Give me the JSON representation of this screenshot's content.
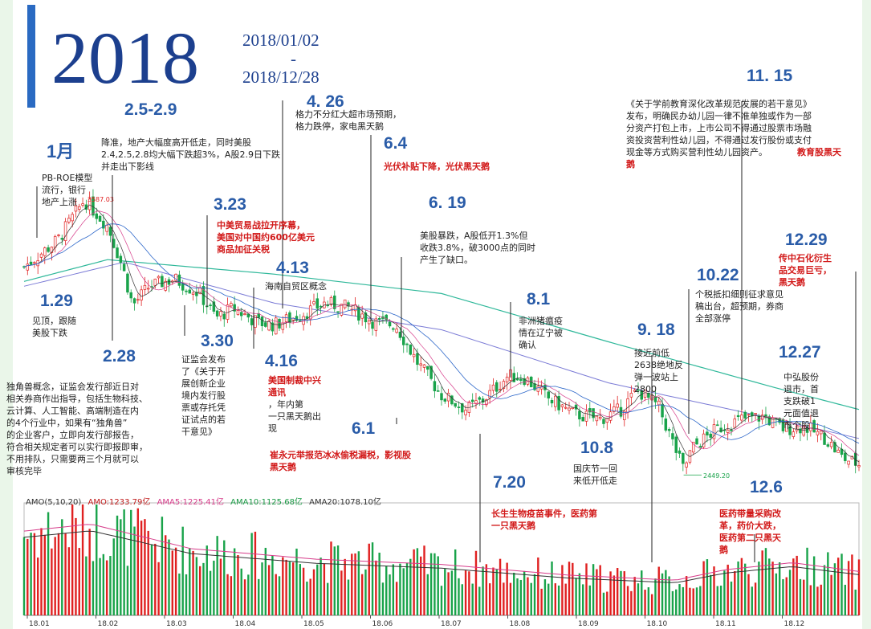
{
  "header": {
    "year": "2018",
    "date_start": "2018/01/02",
    "date_sep": "-",
    "date_end": "2018/12/28"
  },
  "colors": {
    "up": "#e02020",
    "down": "#19a34a",
    "label": "#2a5ca8",
    "annotation_red": "#d21a1a"
  },
  "annotations": [
    {
      "id": "jan",
      "label": "1月",
      "lines": [
        "PB-ROE模型",
        "流行，银行",
        "地产上涨"
      ]
    },
    {
      "id": "d129",
      "label": "1.29",
      "lines": [
        "见顶，跟随",
        "美股下跌"
      ]
    },
    {
      "id": "d25",
      "label": "2.5-2.9",
      "lines": [
        "降准，地产大幅度高开低走，同时美股",
        "2.4,2.5,2.8均大幅下跌超3%，A股2.9日下跌",
        "并走出下影线"
      ]
    },
    {
      "id": "d228",
      "label": "2.28",
      "lines": [
        "独角兽概念，证监会发行部近日对",
        "相关券商作出指导，包括生物科技、",
        "云计算、人工智能、高端制造在内",
        "的4个行业中，如果有“独角兽”",
        "的企业客户，立即向发行部报告，",
        "符合相关规定者可以实行即报即审，",
        "不用排队，只需要两三个月就可以",
        "审核完毕"
      ]
    },
    {
      "id": "d323",
      "label": "3.23",
      "red": [
        "中美贸易战拉开序幕，",
        "美国对中国约600亿美元",
        "商品加征关税"
      ]
    },
    {
      "id": "d330",
      "label": "3.30",
      "lines": [
        "证监会发布",
        "了《关于开",
        "展创新企业",
        "境内发行股",
        "票或存托凭",
        "证试点的若",
        "干意见》"
      ]
    },
    {
      "id": "d413",
      "label": "4.13",
      "lines": [
        "海南自贸区概念"
      ]
    },
    {
      "id": "d416",
      "label": "4.16",
      "red": [
        "美国制裁中兴",
        "通讯"
      ],
      "lines": [
        "，年内第",
        "一只黑天鹅出",
        "现"
      ]
    },
    {
      "id": "d426",
      "label": "4. 26",
      "lines": [
        "格力不分红大超市场预期，",
        "格力跌停，家电黑天鹅"
      ]
    },
    {
      "id": "d64",
      "label": "6.4",
      "red": [
        "光伏补贴下降，光伏黑天鹅"
      ]
    },
    {
      "id": "d61",
      "label": "6.1",
      "red": [
        "崔永元举报范冰冰偷税漏税，影视股",
        "黑天鹅"
      ]
    },
    {
      "id": "d619",
      "label": "6. 19",
      "lines": [
        "美股暴跌，A股低开1.3%但",
        "收跌3.8%，破3000点的同时",
        "产生了缺口。"
      ]
    },
    {
      "id": "d720",
      "label": "7.20",
      "red": [
        "长生生物疫苗事件，医药第",
        "一只黑天鹅"
      ]
    },
    {
      "id": "d81",
      "label": "8.1",
      "lines": [
        "非洲猪瘟疫",
        "情在辽宁被",
        "确认"
      ]
    },
    {
      "id": "d918",
      "label": "9. 18",
      "lines": [
        "接近前低",
        "2638绝地反",
        "弹一波站上",
        "2800"
      ]
    },
    {
      "id": "d108",
      "label": "10.8",
      "lines": [
        "国庆节一回",
        "来低开低走"
      ]
    },
    {
      "id": "d1022",
      "label": "10.22",
      "lines": [
        "个税抵扣细则征求意见",
        "稿出台，超预期，券商",
        "全部涨停"
      ]
    },
    {
      "id": "d1115",
      "label": "11. 15",
      "lines": [
        "《关于学前教育深化改革规范发展的若干意见》",
        "发布，明确民办幼儿园一律不准单独或作为一部",
        "分资产打包上市，上市公司不得通过股票市场融",
        "资投资营利性幼儿园，不得通过发行股份或支付",
        "现金等方式购买营利性幼儿园资产。"
      ],
      "red_tail": "教育股黑天",
      "red_tail2": "鹅"
    },
    {
      "id": "d126",
      "label": "12.6",
      "red": [
        "医药带量采购改",
        "革，药价大跌，",
        "医药第二只黑天",
        "鹅"
      ]
    },
    {
      "id": "d1227",
      "label": "12.27",
      "lines": [
        "中弘股份",
        "退市，首",
        "支跌破1",
        "元面值退",
        "市个股"
      ]
    },
    {
      "id": "d1229",
      "label": "12.29",
      "red": [
        "传中石化衍生",
        "品交易巨亏，",
        "黑天鹅"
      ]
    }
  ],
  "volume_header": {
    "name": "AMO(5,10,20)",
    "amo": "AMO:1233.79亿",
    "amo5": "AMA5:1225.41亿",
    "amo10": "AMA10:1125.68亿",
    "amo20": "AMA20:1078.10亿"
  },
  "chart_data": {
    "type": "candlestick",
    "x": [
      "18.01",
      "18.02",
      "18.03",
      "18.04",
      "18.05",
      "18.06",
      "18.07",
      "18.08",
      "18.09",
      "18.10",
      "18.11",
      "18.12"
    ],
    "price_markers": {
      "high": "3587.03",
      "low": "2449.20"
    },
    "close_path": [
      {
        "t": 0.0,
        "v": 3310
      },
      {
        "t": 0.04,
        "v": 3420
      },
      {
        "t": 0.072,
        "v": 3587
      },
      {
        "t": 0.1,
        "v": 3480
      },
      {
        "t": 0.118,
        "v": 3310
      },
      {
        "t": 0.13,
        "v": 3150
      },
      {
        "t": 0.15,
        "v": 3230
      },
      {
        "t": 0.18,
        "v": 3260
      },
      {
        "t": 0.21,
        "v": 3200
      },
      {
        "t": 0.23,
        "v": 3100
      },
      {
        "t": 0.25,
        "v": 3140
      },
      {
        "t": 0.28,
        "v": 3080
      },
      {
        "t": 0.3,
        "v": 3070
      },
      {
        "t": 0.33,
        "v": 3110
      },
      {
        "t": 0.36,
        "v": 3160
      },
      {
        "t": 0.39,
        "v": 3140
      },
      {
        "t": 0.42,
        "v": 3080
      },
      {
        "t": 0.445,
        "v": 3070
      },
      {
        "t": 0.47,
        "v": 2920
      },
      {
        "t": 0.5,
        "v": 2780
      },
      {
        "t": 0.53,
        "v": 2720
      },
      {
        "t": 0.55,
        "v": 2760
      },
      {
        "t": 0.58,
        "v": 2860
      },
      {
        "t": 0.6,
        "v": 2850
      },
      {
        "t": 0.63,
        "v": 2760
      },
      {
        "t": 0.66,
        "v": 2700
      },
      {
        "t": 0.69,
        "v": 2680
      },
      {
        "t": 0.715,
        "v": 2720
      },
      {
        "t": 0.735,
        "v": 2800
      },
      {
        "t": 0.76,
        "v": 2730
      },
      {
        "t": 0.775,
        "v": 2600
      },
      {
        "t": 0.79,
        "v": 2470
      },
      {
        "t": 0.8,
        "v": 2560
      },
      {
        "t": 0.83,
        "v": 2640
      },
      {
        "t": 0.86,
        "v": 2680
      },
      {
        "t": 0.885,
        "v": 2690
      },
      {
        "t": 0.91,
        "v": 2640
      },
      {
        "t": 0.935,
        "v": 2650
      },
      {
        "t": 0.96,
        "v": 2600
      },
      {
        "t": 0.98,
        "v": 2520
      },
      {
        "t": 1.0,
        "v": 2493
      }
    ],
    "ma_long": [
      {
        "t": 0.0,
        "v": 3250
      },
      {
        "t": 0.1,
        "v": 3340
      },
      {
        "t": 0.3,
        "v": 3280
      },
      {
        "t": 0.5,
        "v": 3200
      },
      {
        "t": 0.7,
        "v": 3000
      },
      {
        "t": 0.9,
        "v": 2810
      },
      {
        "t": 1.0,
        "v": 2720
      }
    ],
    "ma_mid": [
      {
        "t": 0.0,
        "v": 3230
      },
      {
        "t": 0.12,
        "v": 3330
      },
      {
        "t": 0.3,
        "v": 3160
      },
      {
        "t": 0.5,
        "v": 3050
      },
      {
        "t": 0.7,
        "v": 2830
      },
      {
        "t": 0.9,
        "v": 2680
      },
      {
        "t": 1.0,
        "v": 2600
      }
    ],
    "volume_level": [
      {
        "t": 0.0,
        "v": 2400
      },
      {
        "t": 0.08,
        "v": 2600
      },
      {
        "t": 0.2,
        "v": 1900
      },
      {
        "t": 0.35,
        "v": 1600
      },
      {
        "t": 0.5,
        "v": 1450
      },
      {
        "t": 0.65,
        "v": 1150
      },
      {
        "t": 0.78,
        "v": 1000
      },
      {
        "t": 0.84,
        "v": 1300
      },
      {
        "t": 0.92,
        "v": 1500
      },
      {
        "t": 1.0,
        "v": 1250
      }
    ]
  }
}
